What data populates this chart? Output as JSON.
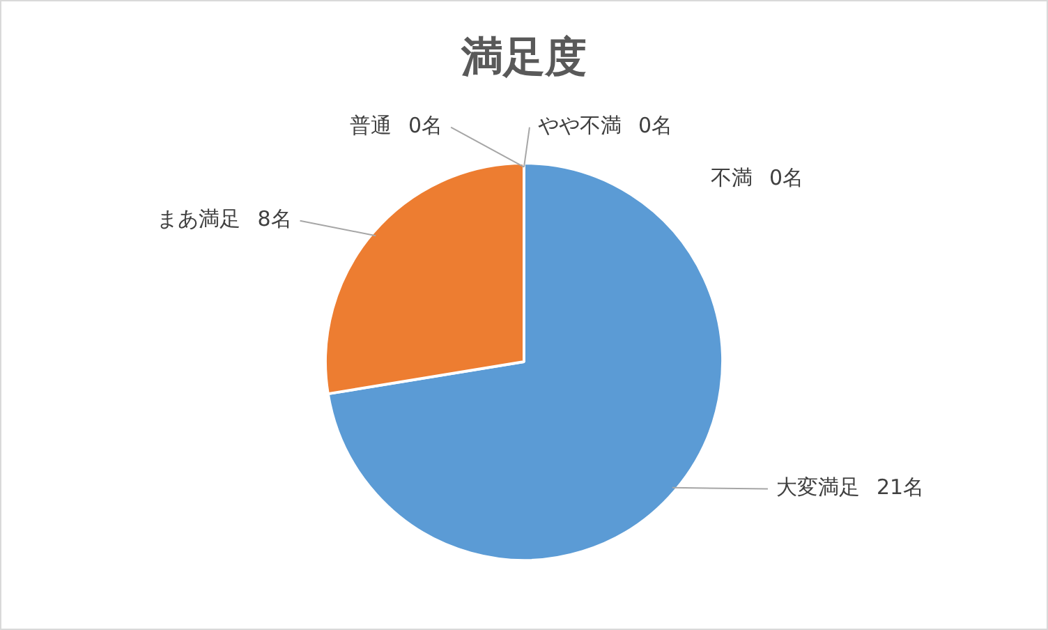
{
  "chart_data": {
    "type": "pie",
    "title": "満足度",
    "categories": [
      "大変満足",
      "まあ満足",
      "普通",
      "やや不満",
      "不満"
    ],
    "values": [
      21,
      8,
      0,
      0,
      0
    ],
    "value_labels": [
      "21名",
      "8名",
      "0名",
      "0名",
      "0名"
    ],
    "colors": [
      "#5b9bd5",
      "#ed7d31",
      "#a5a5a5",
      "#ffc000",
      "#4472c4"
    ],
    "legend": false
  }
}
